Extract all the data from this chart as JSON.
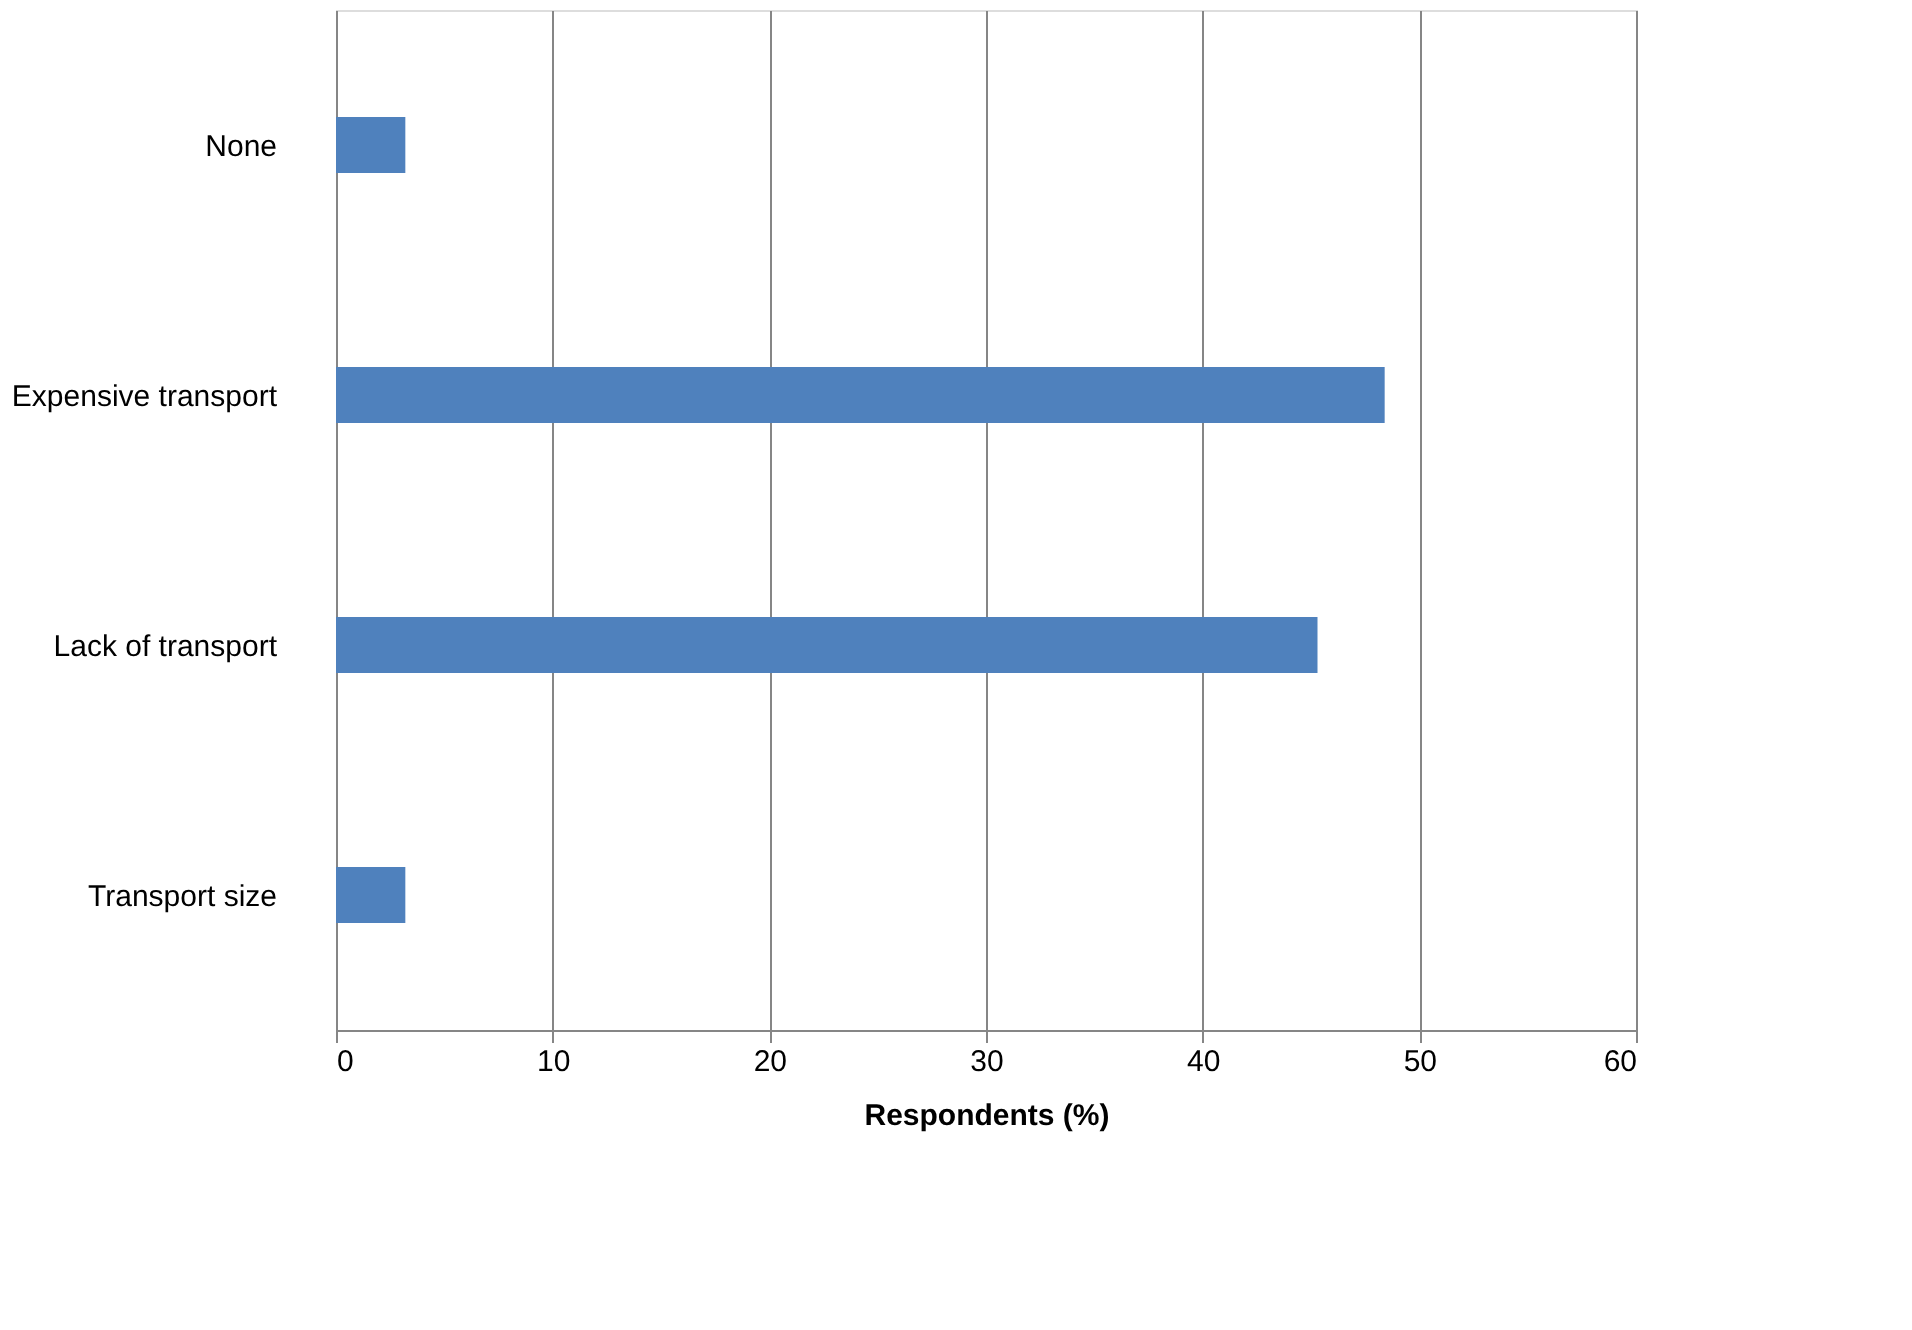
{
  "chart_data": {
    "type": "bar",
    "orientation": "horizontal",
    "categories": [
      "None",
      "Expensive transport",
      "Lack of transport",
      "Transport size"
    ],
    "values": [
      3.2,
      48.4,
      45.3,
      3.2
    ],
    "color": "#4f81bd",
    "xlabel": "Respondents (%)",
    "xlim": [
      0,
      60
    ],
    "xticks": [
      0,
      10,
      20,
      30,
      40,
      50,
      60
    ],
    "grid": "x"
  }
}
